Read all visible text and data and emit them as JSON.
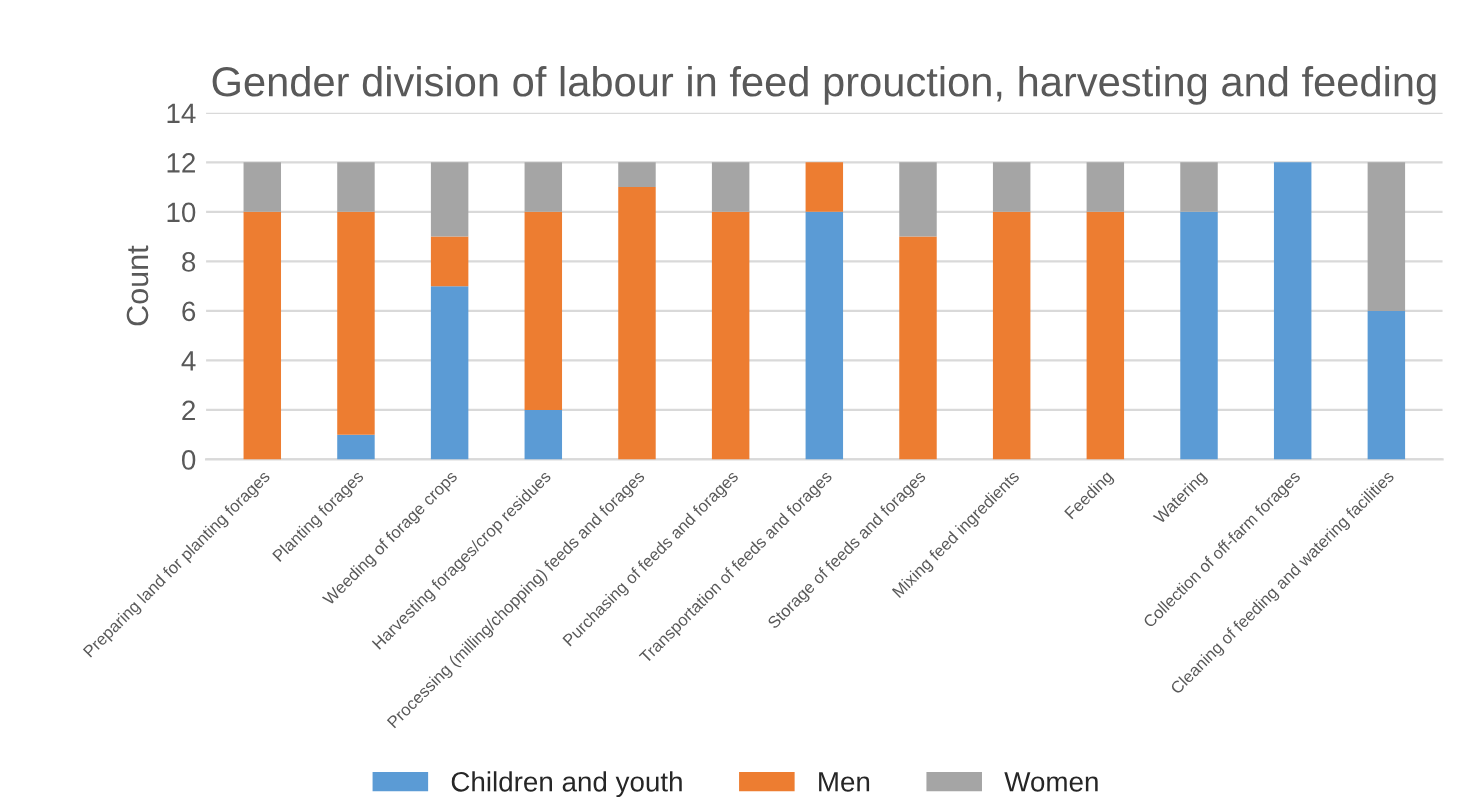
{
  "chart_data": {
    "type": "bar",
    "title": "Gender division of labour in feed prouction, harvesting and feeding",
    "ylabel": "Count",
    "categories": [
      "Preparing land for planting forages",
      "Planting forages",
      "Weeding of forage crops",
      "Harvesting forages/crop residues",
      "Processing (milling/chopping) feeds and forages",
      "Purchasing of feeds and forages",
      "Transportation of feeds and forages",
      "Storage of feeds and forages",
      "Mixing feed ingredients",
      "Feeding",
      "Watering",
      "Collection of off-farm forages",
      "Cleaning of feeding and watering facilities"
    ],
    "series": [
      {
        "name": "Children and youth",
        "color": "#5b9bd5",
        "values": [
          0,
          1,
          7,
          2,
          0,
          0,
          10,
          0,
          0,
          0,
          10,
          12,
          6
        ]
      },
      {
        "name": "Men",
        "color": "#ed7d31",
        "values": [
          10,
          9,
          2,
          8,
          11,
          10,
          2,
          9,
          10,
          10,
          0,
          0,
          0
        ]
      },
      {
        "name": "Women",
        "color": "#a5a5a5",
        "values": [
          2,
          2,
          3,
          2,
          1,
          2,
          0,
          3,
          2,
          2,
          2,
          0,
          6
        ]
      }
    ],
    "stacked": true,
    "ylim": [
      0,
      14
    ],
    "yticks": [
      0,
      2,
      4,
      6,
      8,
      10,
      12,
      14
    ],
    "grid": "y",
    "legend": "bottom"
  }
}
